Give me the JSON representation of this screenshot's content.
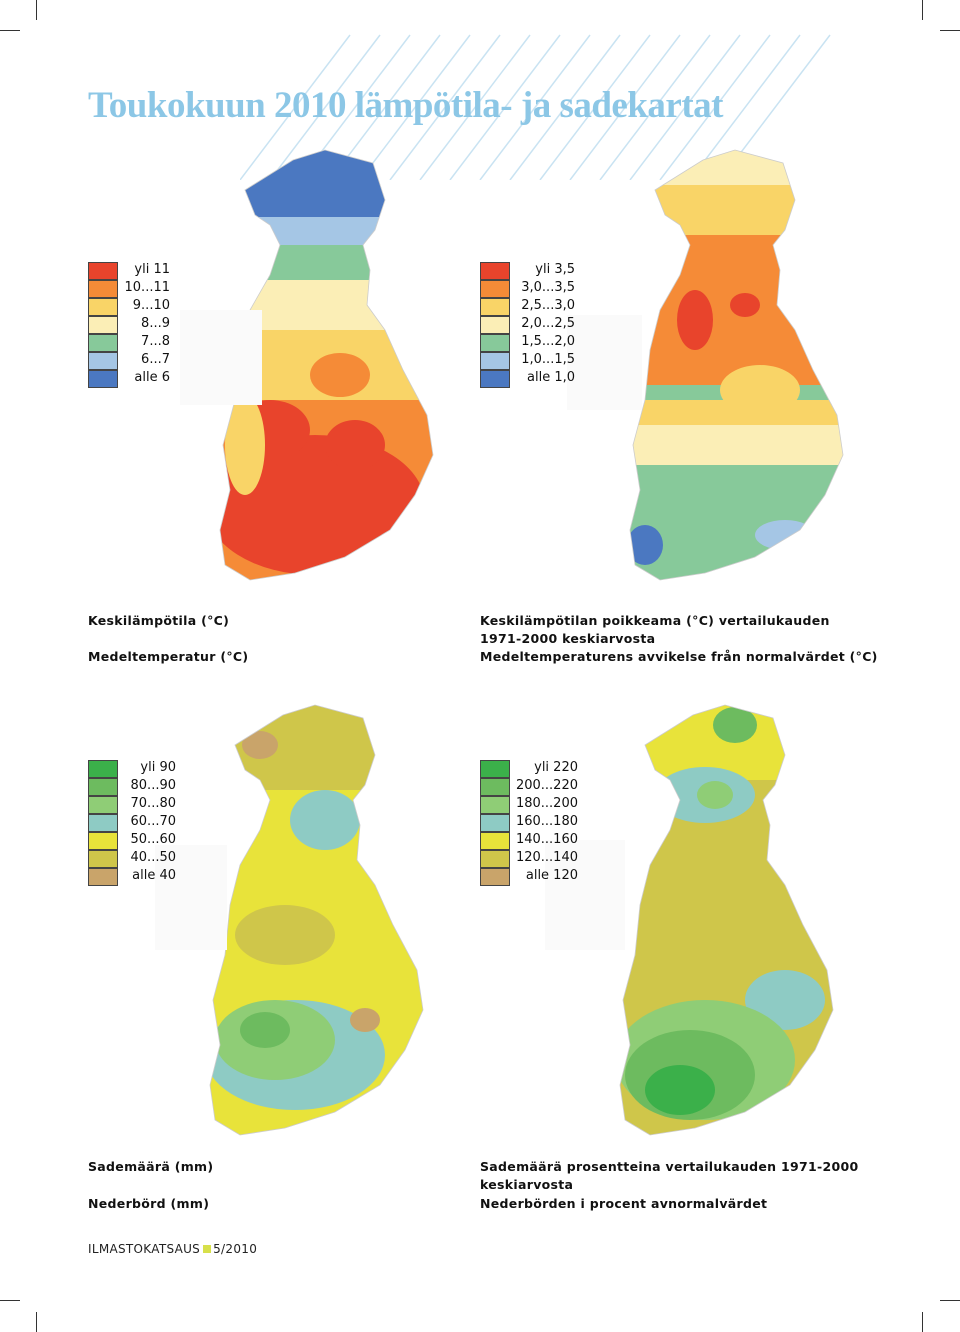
{
  "title": "Toukokuun 2010 lämpötila- ja sadekartat",
  "maps": [
    {
      "id": "mean-temp",
      "caption_fi": "Keskilämpötila (°C)",
      "caption_sv": "Medeltemperatur (°C)",
      "legend": [
        {
          "label": "yli 11",
          "color": "#e8442c"
        },
        {
          "label": "10...11",
          "color": "#f58b37"
        },
        {
          "label": "9...10",
          "color": "#f9d467"
        },
        {
          "label": "8...9",
          "color": "#fbeeb6"
        },
        {
          "label": "7...8",
          "color": "#87c99a"
        },
        {
          "label": "6...7",
          "color": "#a5c6e5"
        },
        {
          "label": "alle 6",
          "color": "#4b78c1"
        }
      ]
    },
    {
      "id": "temp-anomaly",
      "caption_fi": "Keskilämpötilan poikkeama (°C) vertailukauden 1971-2000 keskiarvosta",
      "caption_sv": "Medeltemperaturens avvikelse från normalvärdet (°C)",
      "legend": [
        {
          "label": "yli 3,5",
          "color": "#e8442c"
        },
        {
          "label": "3,0...3,5",
          "color": "#f58b37"
        },
        {
          "label": "2,5...3,0",
          "color": "#f9d467"
        },
        {
          "label": "2,0...2,5",
          "color": "#fbeeb6"
        },
        {
          "label": "1,5...2,0",
          "color": "#87c99a"
        },
        {
          "label": "1,0...1,5",
          "color": "#a5c6e5"
        },
        {
          "label": "alle 1,0",
          "color": "#4b78c1"
        }
      ]
    },
    {
      "id": "precip",
      "caption_fi": "Sademäärä (mm)",
      "caption_sv": "Nederbörd (mm)",
      "legend": [
        {
          "label": "yli 90",
          "color": "#3bb04a"
        },
        {
          "label": "80...90",
          "color": "#6dbb5f"
        },
        {
          "label": "70...80",
          "color": "#8fcd76"
        },
        {
          "label": "60...70",
          "color": "#8ecbc4"
        },
        {
          "label": "50...60",
          "color": "#e8e33a"
        },
        {
          "label": "40...50",
          "color": "#cfc64a"
        },
        {
          "label": "alle 40",
          "color": "#c9a46a"
        }
      ]
    },
    {
      "id": "precip-percent",
      "caption_fi": "Sademäärä prosentteina vertailukauden 1971-2000 keskiarvosta",
      "caption_sv": "Nederbörden i procent avnormalvärdet",
      "legend": [
        {
          "label": "yli 220",
          "color": "#3bb04a"
        },
        {
          "label": "200...220",
          "color": "#6dbb5f"
        },
        {
          "label": "180...200",
          "color": "#8fcd76"
        },
        {
          "label": "160...180",
          "color": "#8ecbc4"
        },
        {
          "label": "140...160",
          "color": "#e8e33a"
        },
        {
          "label": "120...140",
          "color": "#cfc64a"
        },
        {
          "label": "alle 120",
          "color": "#c9a46a"
        }
      ]
    }
  ],
  "footer": {
    "publication": "ILMASTOKATSAUS",
    "issue": "5/2010"
  }
}
